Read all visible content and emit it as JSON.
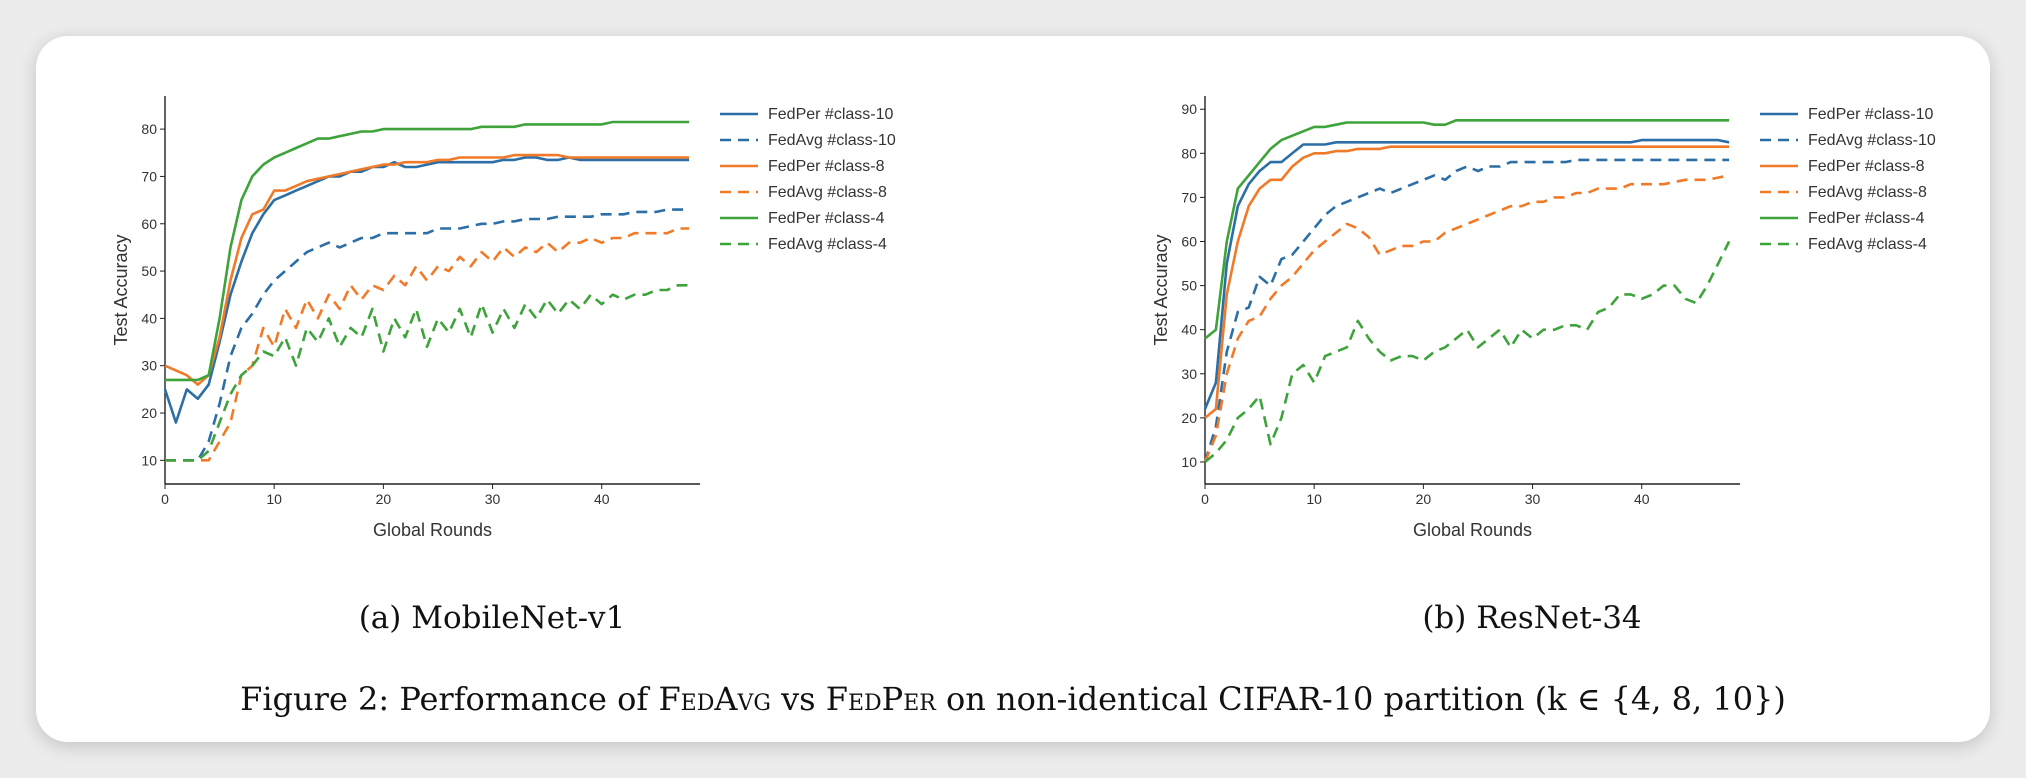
{
  "figure_caption": {
    "prefix": "Figure 2: Performance of ",
    "fedavg": "FedAvg",
    "vs": " vs ",
    "fedper": "FedPer",
    "suffix": " on non-identical CIFAR-10 partition (k ∈ {4, 8, 10})"
  },
  "chart_data": [
    {
      "type": "line",
      "caption": "(a) MobileNet-v1",
      "xlabel": "Global Rounds",
      "ylabel": "Test Accuracy",
      "xlim": [
        0,
        49
      ],
      "ylim": [
        5,
        87
      ],
      "xticks": [
        0,
        10,
        20,
        30,
        40
      ],
      "yticks": [
        10,
        20,
        30,
        40,
        50,
        60,
        70,
        80
      ],
      "legend": "right",
      "grid": false,
      "series": [
        {
          "name": "FedPer #class-10",
          "color": "#2c6ea6",
          "dash": "solid",
          "values": [
            25,
            18,
            25,
            23,
            26,
            35,
            45,
            52,
            58,
            62,
            65,
            66,
            67,
            68,
            69,
            70,
            70,
            71,
            71,
            72,
            72,
            73,
            72,
            72,
            72.5,
            73,
            73,
            73,
            73,
            73,
            73,
            73.5,
            73.5,
            74,
            74,
            73.5,
            73.5,
            74,
            73.5,
            73.5,
            73.5,
            73.5,
            73.5,
            73.5,
            73.5,
            73.5,
            73.5,
            73.5,
            73.5
          ]
        },
        {
          "name": "FedAvg #class-10",
          "color": "#2c6ea6",
          "dash": "dashed",
          "values": [
            10,
            10,
            10,
            10,
            14,
            22,
            32,
            38,
            41,
            45,
            48,
            50,
            52,
            54,
            55,
            56,
            55,
            56,
            57,
            57,
            58,
            58,
            58,
            58,
            58,
            59,
            59,
            59,
            59.5,
            60,
            60,
            60.5,
            60.5,
            61,
            61,
            61,
            61.5,
            61.5,
            61.5,
            61.5,
            62,
            62,
            62,
            62.5,
            62.5,
            62.5,
            63,
            63,
            63
          ]
        },
        {
          "name": "FedPer #class-8",
          "color": "#f07a28",
          "dash": "solid",
          "values": [
            30,
            29,
            28,
            26,
            28,
            36,
            48,
            57,
            62,
            63,
            67,
            67,
            68,
            69,
            69.5,
            70,
            70.5,
            71,
            71.5,
            72,
            72.5,
            72.5,
            73,
            73,
            73,
            73.5,
            73.5,
            74,
            74,
            74,
            74,
            74,
            74.5,
            74.5,
            74.5,
            74.5,
            74.5,
            74,
            74,
            74,
            74,
            74,
            74,
            74,
            74,
            74,
            74,
            74,
            74
          ]
        },
        {
          "name": "FedAvg #class-8",
          "color": "#f07a28",
          "dash": "dashed",
          "values": [
            10,
            10,
            10,
            10,
            10,
            14,
            18,
            28,
            30,
            38,
            34,
            42,
            38,
            44,
            40,
            45,
            42,
            47,
            44,
            47,
            46,
            49,
            47,
            51,
            48,
            51,
            50,
            53,
            51,
            54,
            52,
            55,
            53,
            55,
            54,
            56,
            54,
            56,
            56,
            57,
            56,
            57,
            57,
            58,
            58,
            58,
            58,
            59,
            59
          ]
        },
        {
          "name": "FedPer #class-4",
          "color": "#3da33a",
          "dash": "solid",
          "values": [
            27,
            27,
            27,
            27,
            28,
            40,
            55,
            65,
            70,
            72.5,
            74,
            75,
            76,
            77,
            78,
            78,
            78.5,
            79,
            79.5,
            79.5,
            80,
            80,
            80,
            80,
            80,
            80,
            80,
            80,
            80,
            80.5,
            80.5,
            80.5,
            80.5,
            81,
            81,
            81,
            81,
            81,
            81,
            81,
            81,
            81.5,
            81.5,
            81.5,
            81.5,
            81.5,
            81.5,
            81.5,
            81.5
          ]
        },
        {
          "name": "FedAvg #class-4",
          "color": "#3da33a",
          "dash": "dashed",
          "values": [
            10,
            10,
            10,
            10,
            12,
            18,
            24,
            28,
            30,
            33,
            32,
            36,
            30,
            38,
            35,
            40,
            34,
            38,
            36,
            42,
            33,
            40,
            36,
            42,
            34,
            40,
            37,
            42,
            36,
            43,
            37,
            42,
            38,
            43,
            40,
            44,
            41,
            44,
            42,
            45,
            43,
            45,
            44,
            45,
            45,
            46,
            46,
            47,
            47
          ]
        }
      ]
    },
    {
      "type": "line",
      "caption": "(b) ResNet-34",
      "xlabel": "Global Rounds",
      "ylabel": "Test Accuracy",
      "xlim": [
        0,
        49
      ],
      "ylim": [
        5,
        93
      ],
      "xticks": [
        0,
        10,
        20,
        30,
        40
      ],
      "yticks": [
        10,
        20,
        30,
        40,
        50,
        60,
        70,
        80,
        90
      ],
      "legend": "right",
      "grid": false,
      "series": [
        {
          "name": "FedPer #class-10",
          "color": "#2c6ea6",
          "dash": "solid",
          "values": [
            22,
            28,
            55,
            68,
            73,
            76,
            78,
            78,
            80,
            82,
            82,
            82,
            82.5,
            82.5,
            82.5,
            82.5,
            82.5,
            82.5,
            82.5,
            82.5,
            82.5,
            82.5,
            82.5,
            82.5,
            82.5,
            82.5,
            82.5,
            82.5,
            82.5,
            82.5,
            82.5,
            82.5,
            82.5,
            82.5,
            82.5,
            82.5,
            82.5,
            82.5,
            82.5,
            82.5,
            83,
            83,
            83,
            83,
            83,
            83,
            83,
            83,
            82.5
          ]
        },
        {
          "name": "FedAvg #class-10",
          "color": "#2c6ea6",
          "dash": "dashed",
          "values": [
            10,
            18,
            35,
            44,
            45,
            52,
            50,
            56,
            57,
            60,
            63,
            66,
            68,
            69,
            70,
            71,
            72,
            71,
            72,
            73,
            74,
            75,
            74,
            76,
            77,
            76,
            77,
            77,
            78,
            78,
            78,
            78,
            78,
            78,
            78.5,
            78.5,
            78.5,
            78.5,
            78.5,
            78.5,
            78.5,
            78.5,
            78.5,
            78.5,
            78.5,
            78.5,
            78.5,
            78.5,
            78.5
          ]
        },
        {
          "name": "FedPer #class-8",
          "color": "#f07a28",
          "dash": "solid",
          "values": [
            20,
            22,
            48,
            60,
            68,
            72,
            74,
            74,
            77,
            79,
            80,
            80,
            80.5,
            80.5,
            81,
            81,
            81,
            81.5,
            81.5,
            81.5,
            81.5,
            81.5,
            81.5,
            81.5,
            81.5,
            81.5,
            81.5,
            81.5,
            81.5,
            81.5,
            81.5,
            81.5,
            81.5,
            81.5,
            81.5,
            81.5,
            81.5,
            81.5,
            81.5,
            81.5,
            81.5,
            81.5,
            81.5,
            81.5,
            81.5,
            81.5,
            81.5,
            81.5,
            81.5
          ]
        },
        {
          "name": "FedAvg #class-8",
          "color": "#f07a28",
          "dash": "dashed",
          "values": [
            10,
            16,
            30,
            38,
            42,
            43,
            47,
            50,
            52,
            55,
            58,
            60,
            62,
            64,
            63,
            61,
            57,
            58,
            59,
            59,
            60,
            60,
            62,
            63,
            64,
            65,
            66,
            67,
            68,
            68,
            69,
            69,
            70,
            70,
            71,
            71,
            72,
            72,
            72,
            73,
            73,
            73,
            73,
            73.5,
            74,
            74,
            74,
            74.5,
            75
          ]
        },
        {
          "name": "FedPer #class-4",
          "color": "#3da33a",
          "dash": "solid",
          "values": [
            38,
            40,
            60,
            72,
            75,
            78,
            81,
            83,
            84,
            85,
            86,
            86,
            86.5,
            87,
            87,
            87,
            87,
            87,
            87,
            87,
            87,
            86.5,
            86.5,
            87.5,
            87.5,
            87.5,
            87.5,
            87.5,
            87.5,
            87.5,
            87.5,
            87.5,
            87.5,
            87.5,
            87.5,
            87.5,
            87.5,
            87.5,
            87.5,
            87.5,
            87.5,
            87.5,
            87.5,
            87.5,
            87.5,
            87.5,
            87.5,
            87.5,
            87.5
          ]
        },
        {
          "name": "FedAvg #class-4",
          "color": "#3da33a",
          "dash": "dashed",
          "values": [
            10,
            12,
            15,
            20,
            22,
            25,
            14,
            20,
            30,
            32,
            28,
            34,
            35,
            36,
            42,
            38,
            35,
            33,
            34,
            34,
            33,
            35,
            36,
            38,
            40,
            36,
            38,
            40,
            36,
            40,
            38,
            40,
            40,
            41,
            41,
            40,
            44,
            45,
            48,
            48,
            47,
            48,
            50,
            50,
            47,
            46,
            50,
            55,
            60
          ]
        }
      ]
    }
  ]
}
